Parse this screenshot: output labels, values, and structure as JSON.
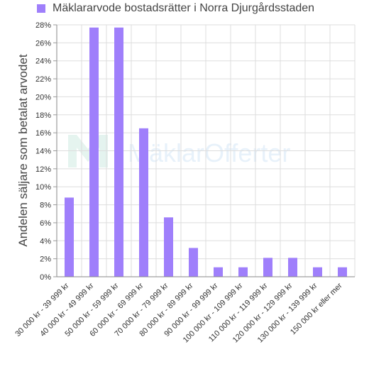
{
  "chart_data": {
    "type": "bar",
    "series": [
      {
        "name": "Mäklararvode bostadsrätter i Norra Djurgårdsstaden",
        "values": [
          8.8,
          27.7,
          27.7,
          16.5,
          6.6,
          3.2,
          1.05,
          1.05,
          2.1,
          2.1,
          1.05,
          1.05
        ]
      }
    ],
    "categories": [
      "30 000 kr - 39 999 kr",
      "40 000 kr - 49 999 kr",
      "50 000 kr - 59 999 kr",
      "60 000 kr - 69 999 kr",
      "70 000 kr - 79 999 kr",
      "80 000 kr - 89 999 kr",
      "90 000 kr - 99 999 kr",
      "100 000 kr - 109 999 kr",
      "110 000 kr - 119 999 kr",
      "120 000 kr - 129 999 kr",
      "130 000 kr - 139 999 kr",
      "150 000 kr eller mer"
    ],
    "yticks": [
      "0%",
      "2%",
      "4%",
      "6%",
      "8%",
      "10%",
      "12%",
      "14%",
      "16%",
      "18%",
      "20%",
      "22%",
      "24%",
      "26%",
      "28%"
    ],
    "ylim": [
      0,
      28
    ],
    "ylabel": "Andelen säljare som betalat arvodet",
    "xlabel": "",
    "grid": true,
    "legend_position": "top-left",
    "bar_color": "#9f7ffb",
    "watermark": "MäklarOfferter"
  }
}
